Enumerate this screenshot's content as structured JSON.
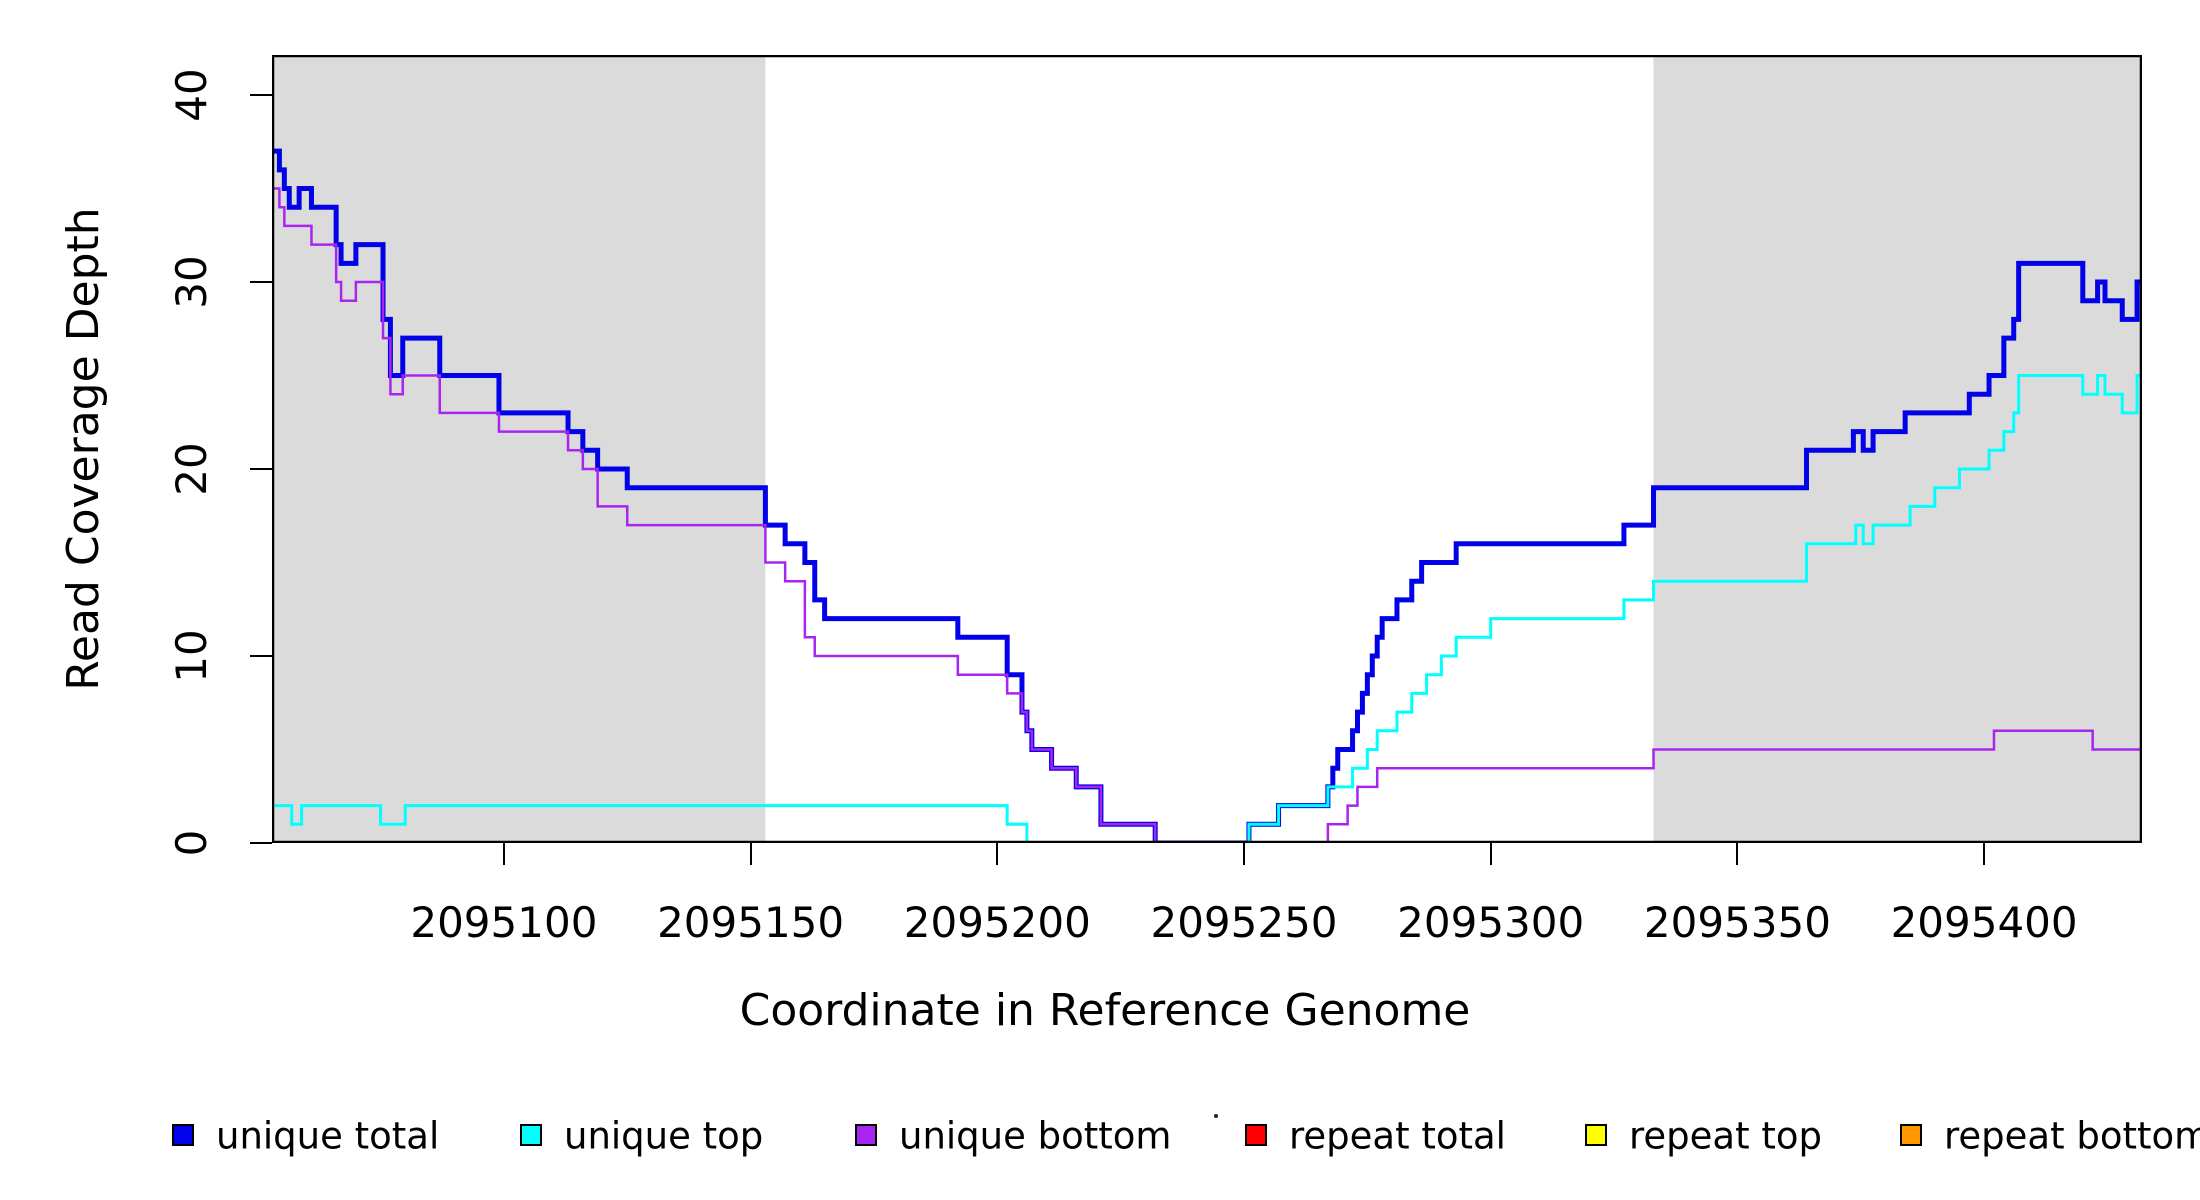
{
  "figure": {
    "x_axis_title": "Coordinate in Reference Genome",
    "y_axis_title": "Read Coverage Depth"
  },
  "chart_data": {
    "type": "line",
    "subtype": "step-after",
    "title": "",
    "xlabel": "Coordinate in Reference Genome",
    "ylabel": "Read Coverage Depth",
    "xlim": [
      2095053,
      2095432
    ],
    "ylim": [
      0,
      42.14
    ],
    "xticks": [
      2095100,
      2095150,
      2095200,
      2095250,
      2095300,
      2095350,
      2095400
    ],
    "yticks": [
      0,
      10,
      20,
      30,
      40
    ],
    "grid": false,
    "legend_position": "bottom-horizontal",
    "shaded_regions": [
      {
        "x0": 2095053,
        "x1": 2095153,
        "color": "#DBDBDB"
      },
      {
        "x0": 2095333,
        "x1": 2095432,
        "color": "#DBDBDB"
      }
    ],
    "series": [
      {
        "name": "unique total",
        "color": "#0202E8",
        "line_width": 5,
        "points": [
          [
            2095053,
            37
          ],
          [
            2095054.5,
            36
          ],
          [
            2095055.5,
            35
          ],
          [
            2095056.5,
            34
          ],
          [
            2095058.5,
            35
          ],
          [
            2095061,
            34
          ],
          [
            2095066,
            32
          ],
          [
            2095067,
            31
          ],
          [
            2095070,
            32
          ],
          [
            2095075.5,
            28
          ],
          [
            2095077,
            25
          ],
          [
            2095079.5,
            27
          ],
          [
            2095087,
            25
          ],
          [
            2095099,
            23
          ],
          [
            2095113,
            22
          ],
          [
            2095116,
            21
          ],
          [
            2095119,
            20
          ],
          [
            2095125,
            19
          ],
          [
            2095153,
            17
          ],
          [
            2095157,
            16
          ],
          [
            2095161,
            15
          ],
          [
            2095163,
            13
          ],
          [
            2095165,
            12
          ],
          [
            2095192,
            11
          ],
          [
            2095202,
            9
          ],
          [
            2095205,
            7
          ],
          [
            2095206,
            6
          ],
          [
            2095207,
            5
          ],
          [
            2095211,
            4
          ],
          [
            2095216,
            3
          ],
          [
            2095221,
            1
          ],
          [
            2095232,
            0
          ],
          [
            2095251,
            1
          ],
          [
            2095257,
            2
          ],
          [
            2095267,
            3
          ],
          [
            2095268,
            4
          ],
          [
            2095269,
            5
          ],
          [
            2095272,
            6
          ],
          [
            2095273,
            7
          ],
          [
            2095274,
            8
          ],
          [
            2095275,
            9
          ],
          [
            2095276,
            10
          ],
          [
            2095277,
            11
          ],
          [
            2095278,
            12
          ],
          [
            2095281,
            13
          ],
          [
            2095284,
            14
          ],
          [
            2095286,
            15
          ],
          [
            2095293,
            16
          ],
          [
            2095327,
            17
          ],
          [
            2095333,
            19
          ],
          [
            2095364,
            21
          ],
          [
            2095373.5,
            22
          ],
          [
            2095375.5,
            21
          ],
          [
            2095377.5,
            22
          ],
          [
            2095384,
            23
          ],
          [
            2095397,
            24
          ],
          [
            2095401,
            25
          ],
          [
            2095404,
            27
          ],
          [
            2095406,
            28
          ],
          [
            2095407,
            31
          ],
          [
            2095420,
            29
          ],
          [
            2095423,
            30
          ],
          [
            2095424.5,
            29
          ],
          [
            2095428,
            28
          ],
          [
            2095431,
            30
          ],
          [
            2095432,
            30
          ]
        ]
      },
      {
        "name": "unique top",
        "color": "#00FFFF",
        "line_width": 3,
        "points": [
          [
            2095053,
            2
          ],
          [
            2095057,
            1
          ],
          [
            2095059,
            2
          ],
          [
            2095075,
            1
          ],
          [
            2095080,
            2
          ],
          [
            2095202,
            1
          ],
          [
            2095206,
            0
          ],
          [
            2095251,
            1
          ],
          [
            2095257,
            2
          ],
          [
            2095267,
            3
          ],
          [
            2095272,
            4
          ],
          [
            2095275,
            5
          ],
          [
            2095277,
            6
          ],
          [
            2095281,
            7
          ],
          [
            2095284,
            8
          ],
          [
            2095287,
            9
          ],
          [
            2095290,
            10
          ],
          [
            2095293,
            11
          ],
          [
            2095300,
            12
          ],
          [
            2095327,
            13
          ],
          [
            2095333,
            14
          ],
          [
            2095364,
            16
          ],
          [
            2095374,
            17
          ],
          [
            2095375.5,
            16
          ],
          [
            2095377.5,
            17
          ],
          [
            2095385,
            18
          ],
          [
            2095390,
            19
          ],
          [
            2095395,
            20
          ],
          [
            2095401,
            21
          ],
          [
            2095404,
            22
          ],
          [
            2095406,
            23
          ],
          [
            2095407,
            25
          ],
          [
            2095420,
            24
          ],
          [
            2095423,
            25
          ],
          [
            2095424.5,
            24
          ],
          [
            2095428,
            23
          ],
          [
            2095431,
            25
          ],
          [
            2095432,
            25
          ]
        ]
      },
      {
        "name": "unique bottom",
        "color": "#A825F0",
        "line_width": 2.5,
        "points": [
          [
            2095053,
            35
          ],
          [
            2095054.5,
            34
          ],
          [
            2095055.5,
            33
          ],
          [
            2095061,
            32
          ],
          [
            2095066,
            30
          ],
          [
            2095067,
            29
          ],
          [
            2095070,
            30
          ],
          [
            2095075.5,
            27
          ],
          [
            2095077,
            24
          ],
          [
            2095079.5,
            25
          ],
          [
            2095087,
            23
          ],
          [
            2095099,
            22
          ],
          [
            2095113,
            21
          ],
          [
            2095116,
            20
          ],
          [
            2095119,
            18
          ],
          [
            2095125,
            17
          ],
          [
            2095153,
            15
          ],
          [
            2095157,
            14
          ],
          [
            2095161,
            11
          ],
          [
            2095163,
            10
          ],
          [
            2095192,
            9
          ],
          [
            2095202,
            8
          ],
          [
            2095205,
            7
          ],
          [
            2095206,
            6
          ],
          [
            2095207,
            5
          ],
          [
            2095211,
            4
          ],
          [
            2095216,
            3
          ],
          [
            2095221,
            1
          ],
          [
            2095232,
            0
          ],
          [
            2095267,
            1
          ],
          [
            2095271,
            2
          ],
          [
            2095273,
            3
          ],
          [
            2095277,
            4
          ],
          [
            2095333,
            5
          ],
          [
            2095402,
            6
          ],
          [
            2095422,
            5
          ],
          [
            2095432,
            5
          ]
        ]
      },
      {
        "name": "repeat total",
        "color": "#FF0000",
        "line_width": 3,
        "points": [
          [
            2095053,
            0
          ],
          [
            2095432,
            0
          ]
        ]
      },
      {
        "name": "repeat top",
        "color": "#FFFF00",
        "line_width": 3,
        "points": [
          [
            2095053,
            0
          ],
          [
            2095432,
            0
          ]
        ]
      },
      {
        "name": "repeat bottom",
        "color": "#FF9800",
        "line_width": 4,
        "points": [
          [
            2095053,
            0
          ],
          [
            2095432,
            0
          ]
        ]
      }
    ]
  },
  "legend": {
    "items": [
      {
        "label": "unique total",
        "color": "#0202E8"
      },
      {
        "label": "unique top",
        "color": "#00FFFF"
      },
      {
        "label": "unique bottom",
        "color": "#A825F0"
      },
      {
        "label": "repeat total",
        "color": "#FF0000"
      },
      {
        "label": "repeat top",
        "color": "#FFFF00"
      },
      {
        "label": "repeat bottom",
        "color": "#FF9800"
      }
    ]
  }
}
